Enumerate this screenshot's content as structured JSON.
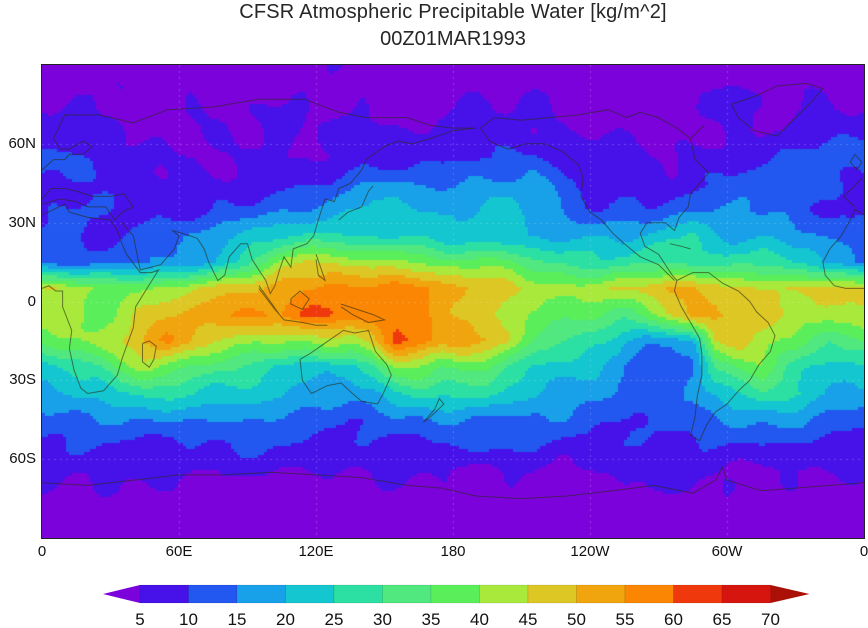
{
  "title": "CFSR Atmospheric Precipitable Water [kg/m^2]",
  "subtitle": "00Z01MAR1993",
  "chart_data": {
    "type": "heatmap",
    "title": "CFSR Atmospheric Precipitable Water [kg/m^2]",
    "subtitle": "00Z01MAR1993",
    "units": "kg/m^2",
    "projection": "equirectangular",
    "lon_range": [
      0,
      360
    ],
    "lat_range": [
      -90,
      90
    ],
    "x_ticks": [
      {
        "label": "0",
        "lon": 0
      },
      {
        "label": "60E",
        "lon": 60
      },
      {
        "label": "120E",
        "lon": 120
      },
      {
        "label": "180",
        "lon": 180
      },
      {
        "label": "120W",
        "lon": 240
      },
      {
        "label": "60W",
        "lon": 300
      },
      {
        "label": "0",
        "lon": 360
      }
    ],
    "y_ticks": [
      {
        "label": "60N",
        "lat": 60
      },
      {
        "label": "30N",
        "lat": 30
      },
      {
        "label": "0",
        "lat": 0
      },
      {
        "label": "30S",
        "lat": -30
      },
      {
        "label": "60S",
        "lat": -60
      }
    ],
    "colorbar": {
      "levels": [
        5,
        10,
        15,
        20,
        25,
        30,
        35,
        40,
        45,
        50,
        55,
        60,
        65,
        70
      ],
      "labels": [
        "5",
        "10",
        "15",
        "20",
        "25",
        "30",
        "35",
        "40",
        "45",
        "50",
        "55",
        "60",
        "65",
        "70"
      ],
      "colors": [
        "#7c02dc",
        "#4612e9",
        "#2257f0",
        "#18a0e8",
        "#14c6cf",
        "#2cdfa3",
        "#50e87f",
        "#5bee5b",
        "#a8e93c",
        "#dcc724",
        "#f0a50e",
        "#fa8603",
        "#f0380d",
        "#d6160e",
        "#ab1007"
      ]
    },
    "grid": {
      "description": "Estimated precipitable water (kg/m^2) on a 10-degree grid; rows from 85N to 85S, columns from 5E to 355E",
      "lon_start": 5,
      "lon_step": 10,
      "lat_start": 85,
      "lat_step": -10,
      "values": [
        [
          3,
          3,
          3,
          3,
          3,
          3,
          3,
          3,
          3,
          3,
          3,
          3,
          3,
          3,
          3,
          3,
          3,
          3,
          3,
          3,
          3,
          3,
          3,
          3,
          3,
          3,
          3,
          3,
          3,
          3,
          3,
          3,
          3,
          3,
          3,
          3
        ],
        [
          5,
          5,
          4,
          4,
          4,
          4,
          4,
          4,
          4,
          4,
          4,
          4,
          4,
          4,
          4,
          4,
          4,
          4,
          4,
          4,
          4,
          4,
          4,
          4,
          3,
          3,
          3,
          3,
          4,
          4,
          4,
          4,
          4,
          5,
          6,
          6
        ],
        [
          8,
          7,
          6,
          6,
          5,
          5,
          5,
          5,
          4,
          4,
          5,
          5,
          5,
          5,
          6,
          6,
          6,
          6,
          6,
          6,
          6,
          5,
          4,
          4,
          4,
          4,
          5,
          5,
          5,
          5,
          5,
          5,
          6,
          7,
          8,
          8
        ],
        [
          11,
          9,
          8,
          7,
          7,
          6,
          6,
          5,
          5,
          5,
          5,
          5,
          6,
          6,
          7,
          7,
          8,
          8,
          9,
          10,
          10,
          10,
          9,
          8,
          6,
          5,
          4,
          4,
          5,
          6,
          7,
          9,
          12,
          14,
          14,
          12
        ],
        [
          10,
          9,
          8,
          8,
          7,
          7,
          7,
          7,
          7,
          7,
          8,
          9,
          10,
          12,
          14,
          16,
          15,
          14,
          14,
          15,
          16,
          16,
          14,
          10,
          8,
          8,
          8,
          7,
          8,
          9,
          11,
          14,
          16,
          15,
          13,
          11
        ],
        [
          12,
          12,
          11,
          10,
          9,
          8,
          8,
          9,
          10,
          12,
          14,
          16,
          18,
          20,
          22,
          22,
          20,
          18,
          18,
          20,
          21,
          18,
          15,
          12,
          10,
          10,
          11,
          12,
          14,
          15,
          15,
          14,
          14,
          12,
          9,
          8
        ],
        [
          11,
          10,
          10,
          11,
          12,
          13,
          15,
          17,
          18,
          22,
          25,
          26,
          26,
          25,
          25,
          24,
          23,
          22,
          22,
          22,
          21,
          20,
          19,
          18,
          18,
          18,
          20,
          24,
          26,
          22,
          20,
          19,
          18,
          16,
          13,
          12
        ],
        [
          13,
          12,
          12,
          12,
          14,
          16,
          18,
          20,
          26,
          34,
          42,
          45,
          45,
          42,
          40,
          40,
          40,
          38,
          38,
          38,
          36,
          32,
          28,
          26,
          25,
          26,
          28,
          30,
          28,
          28,
          28,
          28,
          26,
          24,
          18,
          15
        ],
        [
          46,
          42,
          40,
          38,
          38,
          40,
          44,
          46,
          48,
          50,
          54,
          56,
          56,
          55,
          56,
          58,
          55,
          52,
          50,
          48,
          48,
          45,
          43,
          42,
          43,
          45,
          48,
          50,
          50,
          48,
          46,
          45,
          46,
          48,
          48,
          47
        ],
        [
          44,
          42,
          40,
          42,
          46,
          48,
          50,
          52,
          54,
          56,
          58,
          62,
          62,
          60,
          60,
          58,
          55,
          52,
          50,
          46,
          42,
          40,
          38,
          36,
          34,
          32,
          36,
          45,
          52,
          52,
          50,
          46,
          44,
          42,
          42,
          43
        ],
        [
          36,
          40,
          42,
          46,
          52,
          56,
          50,
          45,
          42,
          40,
          40,
          40,
          42,
          42,
          50,
          62,
          60,
          52,
          55,
          52,
          45,
          35,
          30,
          28,
          26,
          22,
          18,
          16,
          20,
          46,
          48,
          45,
          38,
          34,
          30,
          32
        ],
        [
          24,
          26,
          30,
          38,
          42,
          38,
          34,
          32,
          30,
          28,
          25,
          22,
          20,
          22,
          28,
          40,
          38,
          35,
          38,
          36,
          30,
          26,
          24,
          22,
          18,
          14,
          12,
          10,
          14,
          32,
          38,
          40,
          32,
          26,
          22,
          22
        ],
        [
          18,
          20,
          22,
          25,
          26,
          26,
          24,
          22,
          22,
          22,
          22,
          20,
          18,
          18,
          20,
          24,
          26,
          24,
          26,
          28,
          24,
          22,
          20,
          18,
          16,
          14,
          13,
          12,
          14,
          20,
          26,
          30,
          28,
          24,
          20,
          18
        ],
        [
          12,
          14,
          15,
          16,
          15,
          14,
          14,
          15,
          16,
          15,
          14,
          13,
          12,
          12,
          13,
          14,
          15,
          16,
          15,
          14,
          13,
          14,
          15,
          14,
          12,
          11,
          11,
          12,
          13,
          14,
          15,
          16,
          15,
          14,
          13,
          12
        ],
        [
          8,
          9,
          10,
          10,
          9,
          9,
          10,
          11,
          10,
          9,
          9,
          8,
          8,
          9,
          10,
          10,
          9,
          9,
          10,
          11,
          10,
          9,
          8,
          8,
          9,
          10,
          9,
          8,
          8,
          9,
          10,
          10,
          9,
          9,
          8,
          8
        ],
        [
          5,
          5,
          6,
          6,
          6,
          5,
          5,
          5,
          6,
          6,
          5,
          5,
          5,
          5,
          6,
          6,
          5,
          5,
          5,
          5,
          6,
          6,
          5,
          4,
          4,
          5,
          5,
          6,
          7,
          6,
          5,
          5,
          4,
          4,
          5,
          5
        ],
        [
          3,
          3,
          3,
          3,
          3,
          3,
          3,
          3,
          3,
          3,
          3,
          3,
          3,
          3,
          3,
          3,
          3,
          3,
          3,
          3,
          3,
          3,
          3,
          3,
          3,
          3,
          3,
          3,
          3,
          3,
          3,
          3,
          3,
          3,
          3,
          3
        ],
        [
          2,
          2,
          2,
          2,
          2,
          2,
          2,
          2,
          2,
          2,
          2,
          2,
          2,
          2,
          2,
          2,
          2,
          2,
          2,
          2,
          2,
          2,
          2,
          2,
          2,
          2,
          2,
          2,
          2,
          2,
          2,
          2,
          2,
          2,
          2,
          2
        ]
      ]
    },
    "gridlines": {
      "lon_step": 60,
      "lat_step": 30,
      "style": "faint dashed"
    }
  }
}
